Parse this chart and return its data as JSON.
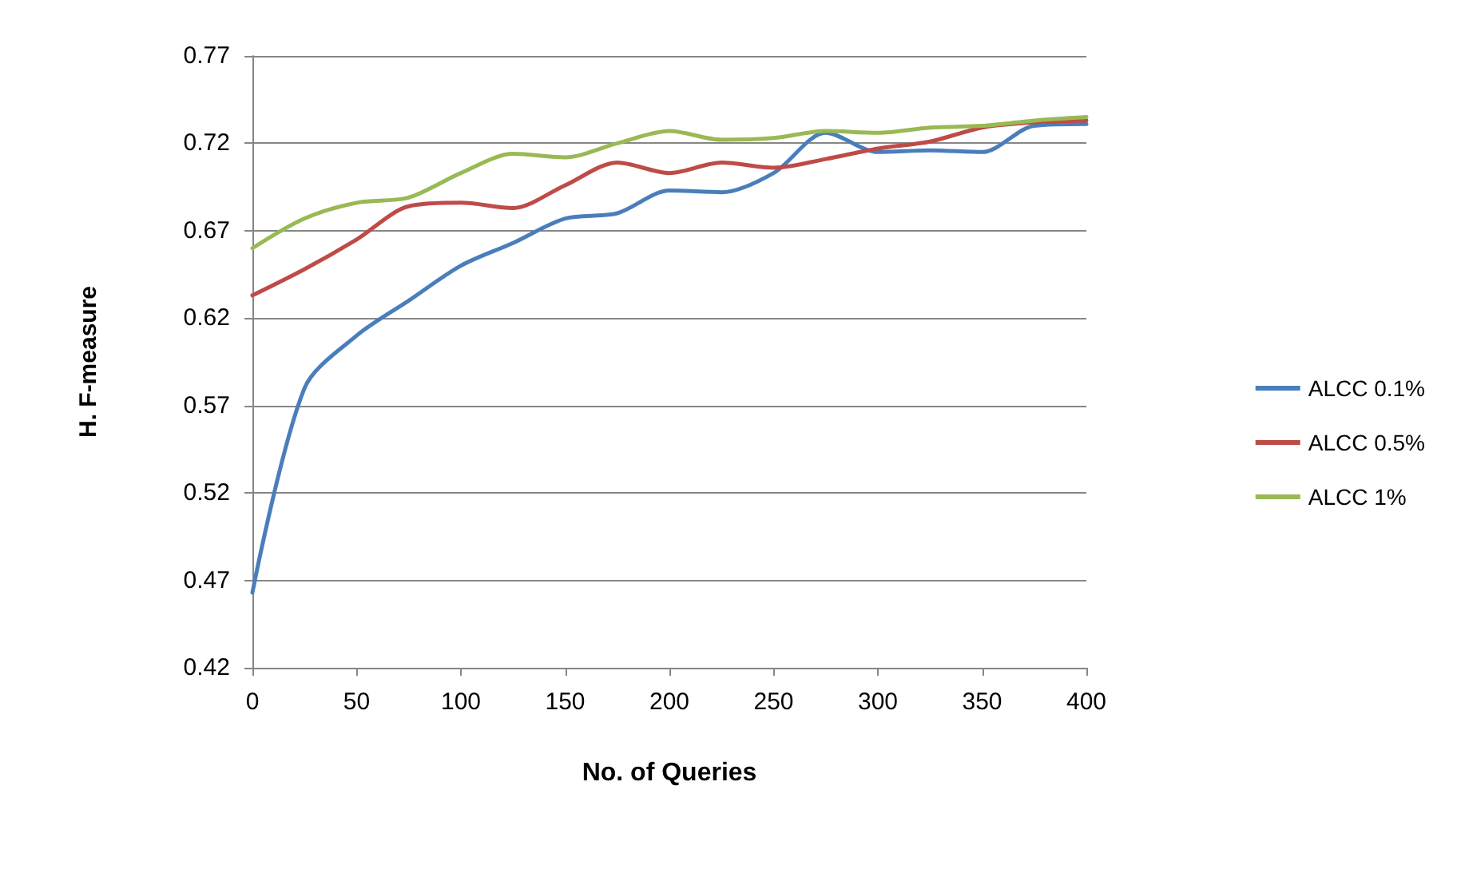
{
  "chart_data": {
    "type": "line",
    "xlabel": "No. of Queries",
    "ylabel": "H. F-measure",
    "x": [
      0,
      25,
      50,
      75,
      100,
      125,
      150,
      175,
      200,
      225,
      250,
      275,
      300,
      325,
      350,
      375,
      400
    ],
    "series": [
      {
        "name": "ALCC 0.1%",
        "color": "#4a7ebb",
        "values": [
          0.463,
          0.58,
          0.61,
          0.63,
          0.65,
          0.663,
          0.677,
          0.68,
          0.693,
          0.692,
          0.703,
          0.726,
          0.715,
          0.716,
          0.715,
          0.73,
          0.731
        ]
      },
      {
        "name": "ALCC 0.5%",
        "color": "#be4b48",
        "values": [
          0.633,
          0.648,
          0.665,
          0.684,
          0.686,
          0.683,
          0.696,
          0.709,
          0.703,
          0.709,
          0.706,
          0.711,
          0.717,
          0.721,
          0.729,
          0.732,
          0.733
        ]
      },
      {
        "name": "ALCC 1%",
        "color": "#98b954",
        "values": [
          0.66,
          0.677,
          0.686,
          0.689,
          0.703,
          0.714,
          0.712,
          0.72,
          0.727,
          0.722,
          0.723,
          0.727,
          0.726,
          0.729,
          0.73,
          0.733,
          0.735
        ]
      }
    ],
    "xlim": [
      0,
      400
    ],
    "xticks": [
      0,
      50,
      100,
      150,
      200,
      250,
      300,
      350,
      400
    ],
    "ylim": [
      0.42,
      0.77
    ],
    "yticks": [
      0.42,
      0.47,
      0.52,
      0.57,
      0.62,
      0.67,
      0.72,
      0.77
    ],
    "grid": "y",
    "legend": "right",
    "marker": "none",
    "line_style": "solid"
  }
}
